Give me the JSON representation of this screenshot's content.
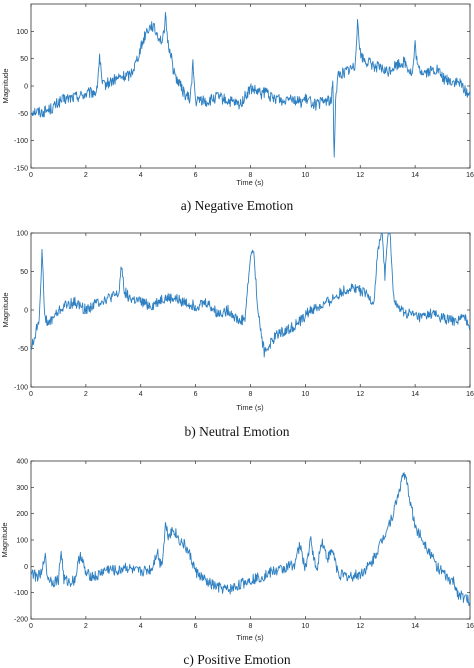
{
  "chart_data": [
    {
      "type": "line",
      "caption": "a) Negative Emotion",
      "xlabel": "Time (s)",
      "ylabel": "Magnitude",
      "xlim": [
        0,
        16
      ],
      "ylim": [
        -150,
        150
      ],
      "xticks": [
        0,
        2,
        4,
        6,
        8,
        10,
        12,
        14,
        16
      ],
      "yticks": [
        -150,
        -100,
        -50,
        0,
        50,
        100
      ],
      "grid": false,
      "series": [
        {
          "x": [
            0,
            0.4,
            0.8,
            1.0,
            1.2,
            1.6,
            2.0,
            2.4,
            2.5,
            2.6,
            2.8,
            3.2,
            3.6,
            3.8,
            4.0,
            4.2,
            4.4,
            4.6,
            4.8,
            4.9,
            5.0,
            5.1,
            5.2,
            5.4,
            5.6,
            5.8,
            5.9,
            6.0,
            6.2,
            6.4,
            6.8,
            7.2,
            7.6,
            7.8,
            8.0,
            8.4,
            8.6,
            8.8,
            9.0,
            9.2,
            9.4,
            9.6,
            9.8,
            10.0,
            10.2,
            10.4,
            10.8,
            10.95,
            11.0,
            11.05,
            11.1,
            11.2,
            11.6,
            11.8,
            11.9,
            12.0,
            12.1,
            12.2,
            12.4,
            12.8,
            13.0,
            13.2,
            13.6,
            13.9,
            14.0,
            14.1,
            14.4,
            14.8,
            15.0,
            15.2,
            15.6,
            15.8,
            16.0
          ],
          "y": [
            -45,
            -48,
            -40,
            -30,
            -25,
            -20,
            -15,
            -10,
            55,
            0,
            5,
            15,
            20,
            40,
            70,
            100,
            112,
            95,
            80,
            125,
            75,
            60,
            25,
            5,
            -15,
            -25,
            40,
            -30,
            -25,
            -30,
            -20,
            -28,
            -35,
            -20,
            -5,
            -15,
            -10,
            -25,
            -20,
            -30,
            -15,
            -25,
            -30,
            -25,
            -28,
            -35,
            -25,
            -30,
            15,
            -135,
            -20,
            20,
            30,
            35,
            120,
            60,
            50,
            45,
            40,
            30,
            25,
            35,
            45,
            20,
            75,
            30,
            25,
            30,
            15,
            10,
            5,
            -5,
            -20
          ]
        }
      ]
    },
    {
      "type": "line",
      "caption": "b) Neutral Emotion",
      "xlabel": "Time (s)",
      "ylabel": "Magnitude",
      "xlim": [
        0,
        16
      ],
      "ylim": [
        -100,
        100
      ],
      "xticks": [
        0,
        2,
        4,
        6,
        8,
        10,
        12,
        14,
        16
      ],
      "yticks": [
        -100,
        -50,
        0,
        50,
        100
      ],
      "grid": false,
      "series": [
        {
          "x": [
            0,
            0.1,
            0.3,
            0.4,
            0.5,
            0.6,
            0.8,
            1.2,
            1.6,
            2.0,
            2.4,
            2.8,
            3.2,
            3.3,
            3.4,
            3.6,
            4.0,
            4.4,
            4.8,
            5.2,
            5.6,
            6.0,
            6.4,
            6.8,
            7.2,
            7.6,
            7.8,
            8.0,
            8.1,
            8.3,
            8.5,
            8.8,
            9.0,
            9.4,
            9.8,
            10.2,
            10.6,
            11.0,
            11.4,
            11.8,
            12.2,
            12.5,
            12.6,
            12.7,
            12.8,
            12.9,
            13.0,
            13.1,
            13.2,
            13.3,
            13.4,
            13.8,
            14.2,
            14.6,
            15.0,
            15.4,
            15.8,
            16.0
          ],
          "y": [
            -50,
            -40,
            -10,
            75,
            -5,
            -20,
            -10,
            5,
            10,
            0,
            10,
            15,
            20,
            60,
            25,
            15,
            10,
            5,
            15,
            15,
            10,
            5,
            10,
            -5,
            0,
            -15,
            -10,
            70,
            80,
            -10,
            -55,
            -40,
            -30,
            -25,
            -15,
            0,
            5,
            15,
            25,
            30,
            20,
            10,
            60,
            90,
            100,
            45,
            95,
            95,
            20,
            10,
            0,
            -5,
            -10,
            -5,
            -10,
            -15,
            -10,
            -20
          ]
        }
      ]
    },
    {
      "type": "line",
      "caption": "c) Positive Emotion",
      "xlabel": "Time (s)",
      "ylabel": "Magnitude",
      "xlim": [
        0,
        16
      ],
      "ylim": [
        -200,
        400
      ],
      "xticks": [
        0,
        2,
        4,
        6,
        8,
        10,
        12,
        14,
        16
      ],
      "yticks": [
        -200,
        -100,
        0,
        100,
        200,
        300,
        400
      ],
      "grid": false,
      "series": [
        {
          "x": [
            0,
            0.2,
            0.4,
            0.5,
            0.6,
            0.8,
            1.0,
            1.1,
            1.2,
            1.4,
            1.6,
            1.8,
            2.0,
            2.4,
            2.6,
            2.8,
            3.2,
            3.4,
            3.6,
            3.8,
            4.0,
            4.4,
            4.6,
            4.7,
            4.8,
            4.9,
            5.0,
            5.2,
            5.4,
            5.6,
            5.8,
            6.0,
            6.4,
            6.8,
            7.2,
            7.6,
            8.0,
            8.4,
            8.8,
            9.2,
            9.6,
            9.8,
            10.0,
            10.2,
            10.4,
            10.6,
            10.8,
            11.0,
            11.2,
            11.6,
            12.0,
            12.4,
            12.8,
            13.2,
            13.6,
            13.8,
            14.0,
            14.4,
            14.8,
            15.2,
            15.4,
            15.6,
            15.8,
            16.0
          ],
          "y": [
            -20,
            -40,
            -30,
            50,
            -40,
            -60,
            -50,
            60,
            -50,
            -60,
            -50,
            50,
            -30,
            -40,
            -20,
            -10,
            -20,
            0,
            -10,
            -20,
            -20,
            -10,
            60,
            10,
            30,
            160,
            120,
            140,
            100,
            80,
            40,
            -20,
            -60,
            -80,
            -90,
            -70,
            -50,
            -40,
            -20,
            -10,
            10,
            80,
            -10,
            100,
            -20,
            100,
            30,
            60,
            -30,
            -40,
            -30,
            10,
            100,
            200,
            360,
            260,
            150,
            80,
            0,
            -50,
            -60,
            -110,
            -120,
            -130
          ]
        }
      ]
    }
  ]
}
